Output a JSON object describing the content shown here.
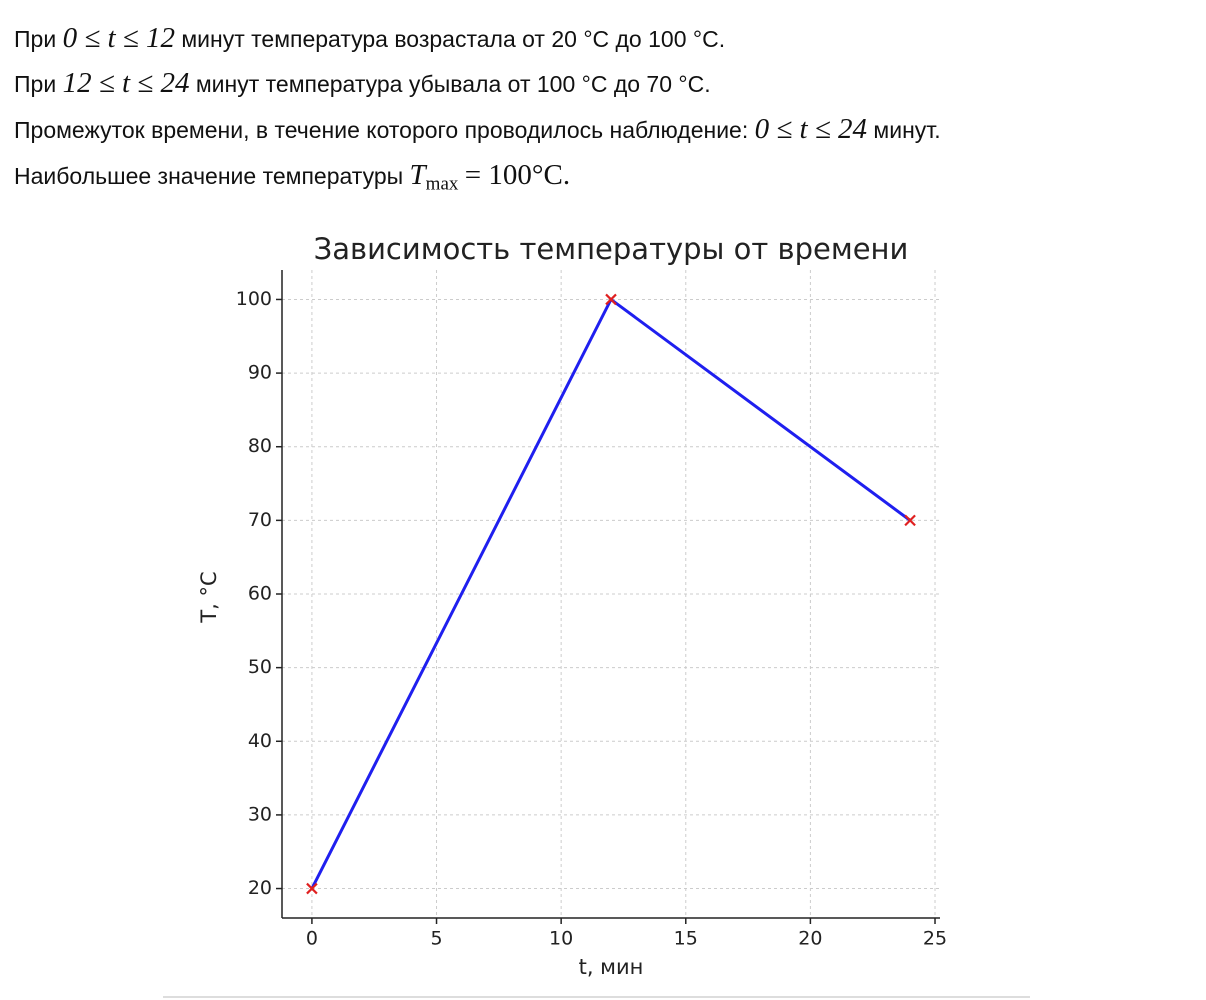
{
  "text": {
    "line1": [
      "При",
      "0 ≤ t ≤ 12",
      "минут температура возрастала от 20 °C до 100 °C."
    ],
    "line2": [
      "При",
      "12 ≤ t ≤ 24",
      "минут температура убывала от 100 °C до 70 °C."
    ],
    "line3": [
      "Промежуток времени, в течение которого проводилось наблюдение:",
      "0 ≤ t ≤ 24",
      "минут."
    ],
    "line4": [
      "Наибольшее значение температуры",
      "T",
      "max",
      "= 100°C."
    ]
  },
  "chart_data": {
    "type": "line",
    "title": "Зависимость температуры от времени",
    "x_label": "t, мин",
    "y_label": "T, °C",
    "x": [
      0,
      12,
      24
    ],
    "values": [
      20,
      100,
      70
    ],
    "color": "#1f1fef",
    "marker_color": "#e02020",
    "xlim": [
      -1.2,
      25.2
    ],
    "ylim": [
      16,
      104
    ],
    "xticks": [
      0,
      5,
      10,
      15,
      20,
      25
    ],
    "yticks": [
      20,
      30,
      40,
      50,
      60,
      70,
      80,
      90,
      100
    ],
    "grid": true
  }
}
